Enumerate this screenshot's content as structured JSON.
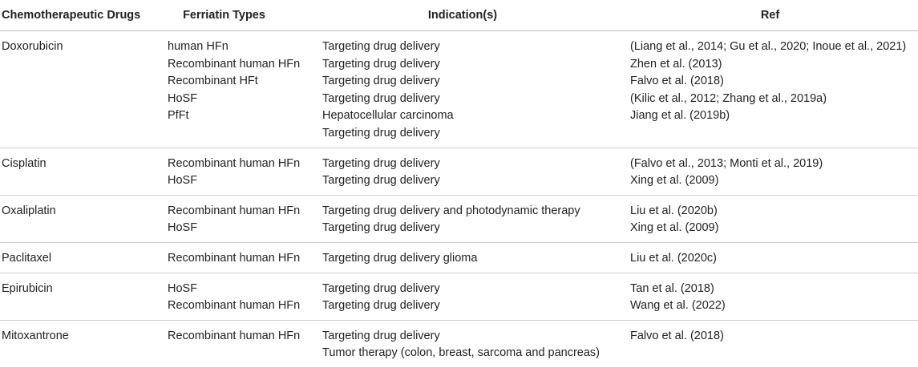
{
  "headers": [
    "Chemotherapeutic Drugs",
    "Ferriatin Types",
    "Indication(s)",
    "Ref"
  ],
  "rows": [
    {
      "drug": "Doxorubicin",
      "types": [
        "human HFn",
        "Recombinant human HFn",
        "Recombinant HFt",
        "HoSF",
        "PfFt"
      ],
      "indications": [
        "Targeting drug delivery",
        "Targeting drug delivery",
        "Targeting drug delivery",
        "Targeting drug delivery",
        "Hepatocellular carcinoma",
        "Targeting drug delivery"
      ],
      "refs": [
        "(Liang et al., 2014; Gu et al., 2020; Inoue et al., 2021)",
        "Zhen et al. (2013)",
        "Falvo et al. (2018)",
        "(Kilic et al., 2012; Zhang et al., 2019a)",
        "Jiang et al. (2019b)"
      ]
    },
    {
      "drug": "Cisplatin",
      "types": [
        "Recombinant human HFn",
        "HoSF"
      ],
      "indications": [
        "Targeting drug delivery",
        "Targeting drug delivery"
      ],
      "refs": [
        "(Falvo et al., 2013; Monti et al., 2019)",
        "Xing et al. (2009)"
      ]
    },
    {
      "drug": "Oxaliplatin",
      "types": [
        "Recombinant human HFn",
        "HoSF"
      ],
      "indications": [
        "Targeting drug delivery and photodynamic therapy",
        "Targeting drug delivery"
      ],
      "refs": [
        "Liu et al. (2020b)",
        "Xing et al. (2009)"
      ]
    },
    {
      "drug": "Paclitaxel",
      "types": [
        "Recombinant human HFn"
      ],
      "indications": [
        "Targeting drug delivery glioma"
      ],
      "refs": [
        "Liu et al. (2020c)"
      ]
    },
    {
      "drug": "Epirubicin",
      "types": [
        "HoSF",
        "Recombinant human HFn"
      ],
      "indications": [
        "Targeting drug delivery",
        "Targeting drug delivery"
      ],
      "refs": [
        "Tan et al. (2018)",
        "Wang et al. (2022)"
      ]
    },
    {
      "drug": "Mitoxantrone",
      "types": [
        "Recombinant human HFn"
      ],
      "indications": [
        "Targeting drug delivery",
        "Tumor therapy (colon, breast, sarcoma and pancreas)"
      ],
      "refs": [
        "Falvo et al. (2018)"
      ]
    }
  ]
}
